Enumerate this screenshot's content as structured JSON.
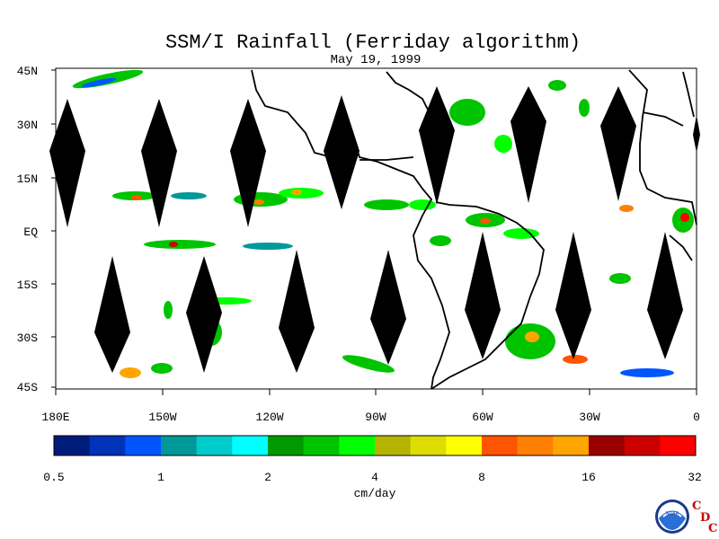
{
  "title": "SSM/I Rainfall (Ferriday algorithm)",
  "subtitle": "May 19, 1999",
  "y_ticks": [
    "45N",
    "30N",
    "15N",
    "EQ",
    "15S",
    "30S",
    "45S"
  ],
  "x_ticks": [
    "180E",
    "150W",
    "120W",
    "90W",
    "60W",
    "30W",
    "0"
  ],
  "colorbar": {
    "tick_labels": [
      "0.5",
      "1",
      "2",
      "4",
      "8",
      "16",
      "32"
    ],
    "unit_label": "cm/day",
    "colors": [
      "#001c7a",
      "#0033b8",
      "#0055ff",
      "#009999",
      "#00cccc",
      "#00ffff",
      "#009900",
      "#00c400",
      "#00ff00",
      "#b4b400",
      "#dddd00",
      "#ffff00",
      "#ff5500",
      "#ff8000",
      "#ffa500",
      "#990000",
      "#cc0000",
      "#ff0000"
    ]
  },
  "logo": {
    "noaa_text": "NOAA",
    "c1": "C",
    "d": "D",
    "c2": "C"
  }
}
